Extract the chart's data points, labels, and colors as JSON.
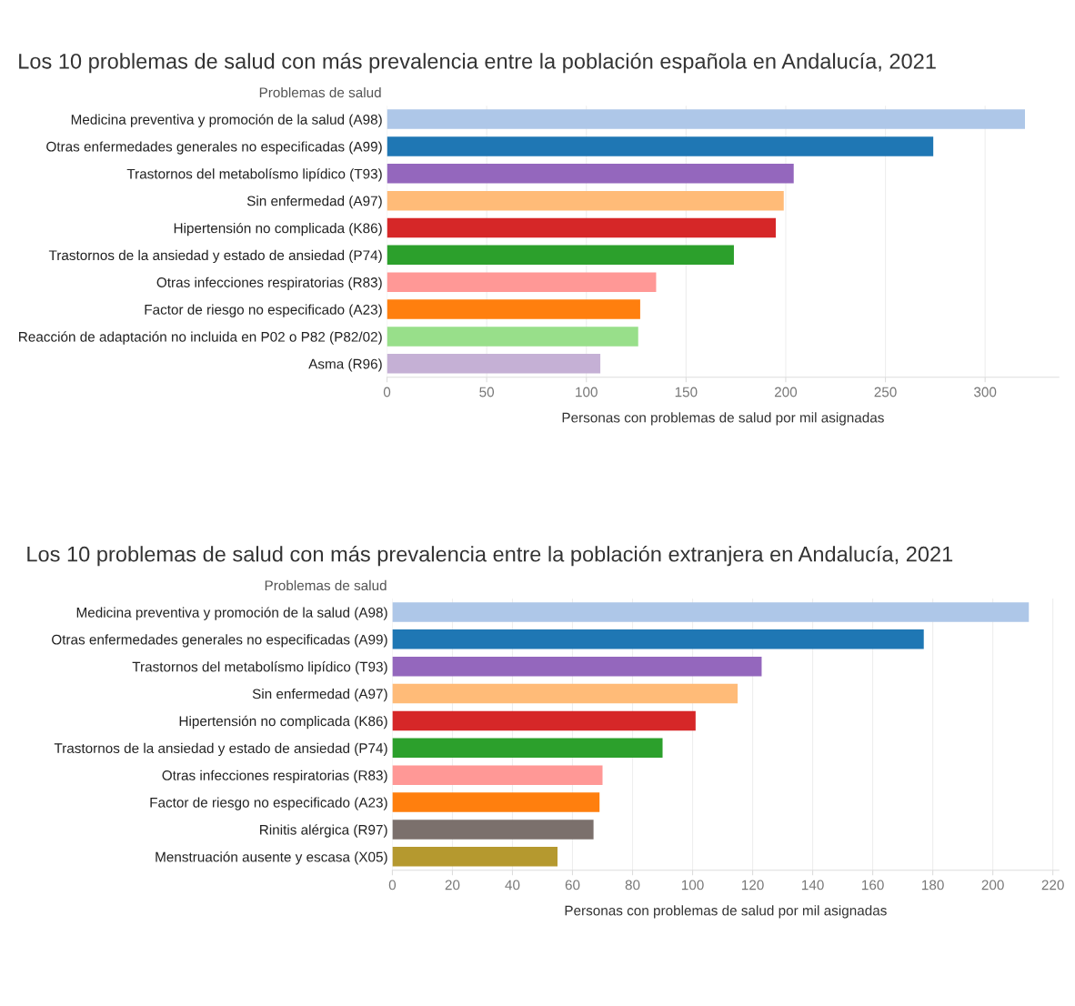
{
  "chart_data": [
    {
      "type": "bar",
      "orientation": "horizontal",
      "title": "Los 10 problemas de salud con más prevalencia entre la población española en Andalucía, 2021",
      "ylabel": "Problemas de salud",
      "xlabel": "Personas con problemas de salud por mil asignadas",
      "categories": [
        "Medicina preventiva y promoción de la salud (A98)",
        "Otras enfermedades generales no especificadas (A99)",
        "Trastornos del metabolísmo lipídico (T93)",
        "Sin enfermedad (A97)",
        "Hipertensión no complicada (K86)",
        "Trastornos de la ansiedad y estado de ansiedad (P74)",
        "Otras infecciones respiratorias (R83)",
        "Factor de riesgo no especificado (A23)",
        "Reacción de adaptación no incluida en P02 o P82 (P82/02)",
        "Asma (R96)"
      ],
      "values": [
        320,
        274,
        204,
        199,
        195,
        174,
        135,
        127,
        126,
        107
      ],
      "colors": [
        "#aec7e8",
        "#1f77b4",
        "#9467bd",
        "#ffbb78",
        "#d62728",
        "#2ca02c",
        "#ff9896",
        "#ff7f0e",
        "#98df8a",
        "#c5b0d5"
      ],
      "xlim": [
        0,
        337
      ],
      "xticks": [
        0,
        50,
        100,
        150,
        200,
        250,
        300
      ],
      "grid": "x"
    },
    {
      "type": "bar",
      "orientation": "horizontal",
      "title": "Los 10 problemas de salud con más prevalencia entre la población extranjera en Andalucía, 2021",
      "ylabel": "Problemas de salud",
      "xlabel": "Personas con problemas de salud por mil asignadas",
      "categories": [
        "Medicina preventiva y promoción de la salud (A98)",
        "Otras enfermedades generales no especificadas (A99)",
        "Trastornos del metabolísmo lipídico (T93)",
        "Sin enfermedad (A97)",
        "Hipertensión no complicada (K86)",
        "Trastornos de la ansiedad y estado de ansiedad (P74)",
        "Otras infecciones respiratorias (R83)",
        "Factor de riesgo no especificado (A23)",
        "Rinitis alérgica (R97)",
        "Menstruación ausente y escasa (X05)"
      ],
      "values": [
        212,
        177,
        123,
        115,
        101,
        90,
        70,
        69,
        67,
        55
      ],
      "colors": [
        "#aec7e8",
        "#1f77b4",
        "#9467bd",
        "#ffbb78",
        "#d62728",
        "#2ca02c",
        "#ff9896",
        "#ff7f0e",
        "#7b706c",
        "#b5992f"
      ],
      "xlim": [
        0,
        222
      ],
      "xticks": [
        0,
        20,
        40,
        60,
        80,
        100,
        120,
        140,
        160,
        180,
        200,
        220
      ],
      "grid": "x"
    }
  ]
}
